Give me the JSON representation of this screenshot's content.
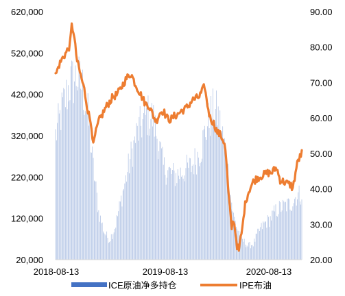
{
  "chart_data": {
    "type": "bar+line",
    "left_axis": {
      "min": 20000,
      "max": 620000,
      "ticks": [
        "20,000",
        "120,000",
        "220,000",
        "320,000",
        "420,000",
        "520,000",
        "620,000"
      ]
    },
    "right_axis": {
      "min": 20,
      "max": 90,
      "ticks": [
        "20.00",
        "30.00",
        "40.00",
        "50.00",
        "60.00",
        "70.00",
        "80.00",
        "90.00"
      ]
    },
    "x_ticks": [
      "2018-08-13",
      "2019-08-13",
      "2020-08-13"
    ],
    "legend_position": "bottom",
    "bar_series": {
      "name": "ICE原油净多持仓",
      "color": "#4472c4",
      "anchors": [
        [
          0,
          330000
        ],
        [
          8,
          400000
        ],
        [
          16,
          460000
        ],
        [
          24,
          475000
        ],
        [
          30,
          450000
        ],
        [
          36,
          380000
        ],
        [
          42,
          250000
        ],
        [
          48,
          140000
        ],
        [
          54,
          90000
        ],
        [
          60,
          70000
        ],
        [
          66,
          100000
        ],
        [
          72,
          160000
        ],
        [
          78,
          220000
        ],
        [
          84,
          280000
        ],
        [
          90,
          330000
        ],
        [
          96,
          360000
        ],
        [
          102,
          380000
        ],
        [
          108,
          375000
        ],
        [
          114,
          320000
        ],
        [
          120,
          250000
        ],
        [
          126,
          240000
        ],
        [
          132,
          230000
        ],
        [
          138,
          235000
        ],
        [
          144,
          245000
        ],
        [
          150,
          250000
        ],
        [
          156,
          270000
        ],
        [
          162,
          300000
        ],
        [
          168,
          350000
        ],
        [
          174,
          390000
        ],
        [
          180,
          385000
        ],
        [
          186,
          330000
        ],
        [
          190,
          280000
        ],
        [
          194,
          200000
        ],
        [
          198,
          130000
        ],
        [
          202,
          100000
        ],
        [
          208,
          70000
        ],
        [
          214,
          55000
        ],
        [
          220,
          60000
        ],
        [
          226,
          90000
        ],
        [
          232,
          110000
        ],
        [
          238,
          120000
        ],
        [
          244,
          140000
        ],
        [
          250,
          150000
        ],
        [
          256,
          155000
        ],
        [
          262,
          160000
        ],
        [
          268,
          180000
        ],
        [
          274,
          185000
        ]
      ]
    },
    "line_series": {
      "name": "IPE布油",
      "color": "#ed7d31",
      "anchors": [
        [
          0,
          72.0
        ],
        [
          4,
          75.0
        ],
        [
          8,
          77.0
        ],
        [
          12,
          78.5
        ],
        [
          16,
          80.5
        ],
        [
          18,
          86.0
        ],
        [
          20,
          84.5
        ],
        [
          22,
          80.0
        ],
        [
          24,
          76.0
        ],
        [
          28,
          72.0
        ],
        [
          32,
          68.0
        ],
        [
          36,
          62.0
        ],
        [
          40,
          58.0
        ],
        [
          42,
          52.0
        ],
        [
          44,
          55.0
        ],
        [
          48,
          59.0
        ],
        [
          52,
          61.0
        ],
        [
          56,
          63.0
        ],
        [
          60,
          64.5
        ],
        [
          64,
          66.0
        ],
        [
          68,
          66.5
        ],
        [
          72,
          68.0
        ],
        [
          76,
          70.0
        ],
        [
          80,
          71.5
        ],
        [
          84,
          72.5
        ],
        [
          88,
          70.0
        ],
        [
          92,
          68.0
        ],
        [
          96,
          66.0
        ],
        [
          100,
          64.0
        ],
        [
          104,
          63.5
        ],
        [
          108,
          61.0
        ],
        [
          112,
          59.0
        ],
        [
          116,
          61.5
        ],
        [
          120,
          62.0
        ],
        [
          124,
          60.0
        ],
        [
          128,
          59.5
        ],
        [
          132,
          60.5
        ],
        [
          136,
          61.0
        ],
        [
          140,
          62.0
        ],
        [
          144,
          62.5
        ],
        [
          148,
          63.5
        ],
        [
          152,
          65.0
        ],
        [
          156,
          65.5
        ],
        [
          160,
          66.0
        ],
        [
          164,
          68.0
        ],
        [
          166,
          69.0
        ],
        [
          168,
          65.0
        ],
        [
          172,
          60.0
        ],
        [
          176,
          58.5
        ],
        [
          180,
          56.0
        ],
        [
          184,
          55.0
        ],
        [
          188,
          53.0
        ],
        [
          190,
          48.0
        ],
        [
          192,
          40.0
        ],
        [
          194,
          34.0
        ],
        [
          196,
          29.0
        ],
        [
          198,
          31.5
        ],
        [
          200,
          28.0
        ],
        [
          202,
          24.0
        ],
        [
          204,
          22.5
        ],
        [
          206,
          26.0
        ],
        [
          208,
          29.0
        ],
        [
          210,
          34.0
        ],
        [
          212,
          37.0
        ],
        [
          216,
          40.0
        ],
        [
          220,
          42.0
        ],
        [
          224,
          43.0
        ],
        [
          228,
          43.5
        ],
        [
          232,
          44.0
        ],
        [
          236,
          44.5
        ],
        [
          240,
          44.5
        ],
        [
          244,
          45.5
        ],
        [
          246,
          46.0
        ],
        [
          248,
          44.0
        ],
        [
          250,
          42.5
        ],
        [
          254,
          42.0
        ],
        [
          258,
          41.5
        ],
        [
          262,
          41.0
        ],
        [
          264,
          40.0
        ],
        [
          266,
          43.0
        ],
        [
          268,
          46.0
        ],
        [
          270,
          48.0
        ],
        [
          272,
          49.0
        ],
        [
          274,
          50.0
        ]
      ]
    }
  }
}
